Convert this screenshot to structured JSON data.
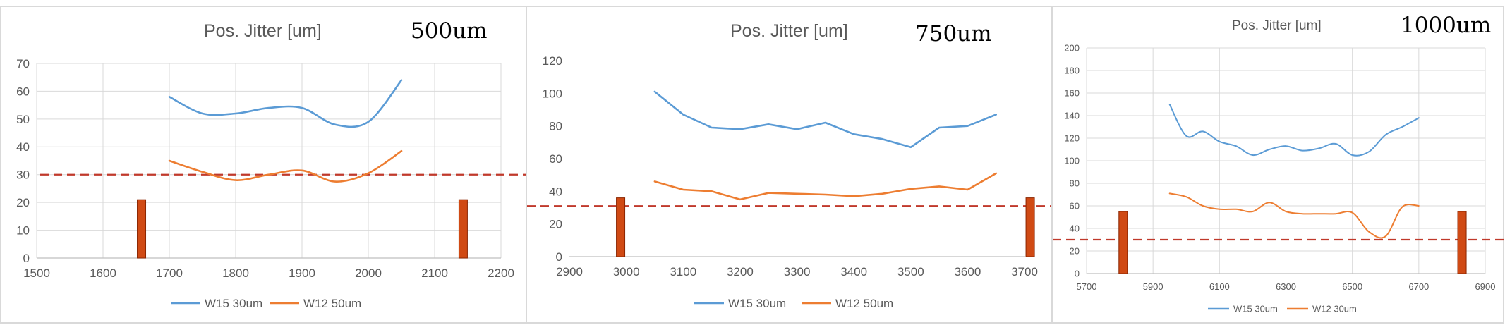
{
  "colors": {
    "series_blue": "#5b9bd5",
    "series_orange": "#ed7d31",
    "threshold": "#c0392b",
    "marker_fill": "#d04a14",
    "marker_stroke": "#8b2500",
    "grid": "#d9d9d9",
    "axis_text": "#595959"
  },
  "chart_data": [
    {
      "type": "line",
      "title": "Pos. Jitter [um]",
      "annotation": "500um",
      "xlim": [
        1500,
        2200
      ],
      "ylim": [
        0,
        70
      ],
      "xticks": [
        1500,
        1600,
        1700,
        1800,
        1900,
        2000,
        2100,
        2200
      ],
      "yticks": [
        0,
        10,
        20,
        30,
        40,
        50,
        60,
        70
      ],
      "grid": true,
      "legend_position": "bottom",
      "series": [
        {
          "name": "W15 30um",
          "color": "#5b9bd5",
          "x": [
            1700,
            1750,
            1800,
            1850,
            1900,
            1950,
            2000,
            2050
          ],
          "y": [
            58,
            52,
            52,
            54,
            54,
            48,
            49,
            64
          ]
        },
        {
          "name": "W12 50um",
          "color": "#ed7d31",
          "x": [
            1700,
            1750,
            1800,
            1850,
            1900,
            1950,
            2000,
            2050
          ],
          "y": [
            35,
            31,
            28,
            30,
            31.5,
            27.5,
            30.5,
            38.5
          ]
        }
      ],
      "threshold": 30,
      "markers": [
        {
          "x": 1658,
          "height": 21
        },
        {
          "x": 2143,
          "height": 21
        }
      ]
    },
    {
      "type": "line",
      "title": "Pos. Jitter [um]",
      "annotation": "750um",
      "xlim": [
        2900,
        3700
      ],
      "ylim": [
        0,
        120
      ],
      "xticks": [
        2900,
        3000,
        3100,
        3200,
        3300,
        3400,
        3500,
        3600,
        3700
      ],
      "yticks": [
        0,
        20,
        40,
        60,
        80,
        100,
        120
      ],
      "grid": false,
      "legend_position": "bottom",
      "series": [
        {
          "name": "W15 30um",
          "color": "#5b9bd5",
          "x": [
            3050,
            3100,
            3150,
            3200,
            3250,
            3300,
            3350,
            3400,
            3450,
            3500,
            3550,
            3600,
            3650
          ],
          "y": [
            101,
            87,
            79,
            78,
            81,
            78,
            82,
            75,
            72,
            67,
            79,
            80,
            87
          ]
        },
        {
          "name": "W12 50um",
          "color": "#ed7d31",
          "x": [
            3050,
            3100,
            3150,
            3200,
            3250,
            3300,
            3350,
            3400,
            3450,
            3500,
            3550,
            3600,
            3650
          ],
          "y": [
            46,
            41,
            40,
            35,
            39,
            38.5,
            38,
            37,
            38.5,
            41.5,
            43,
            41,
            51
          ]
        }
      ],
      "threshold": 31,
      "markers": [
        {
          "x": 2990,
          "height": 36
        },
        {
          "x": 3710,
          "height": 36
        }
      ]
    },
    {
      "type": "line",
      "title": "Pos. Jitter [um]",
      "annotation": "1000um",
      "xlim": [
        5700,
        6900
      ],
      "ylim": [
        0,
        200
      ],
      "xticks": [
        5700,
        5900,
        6100,
        6300,
        6500,
        6700,
        6900
      ],
      "yticks": [
        0,
        20,
        40,
        60,
        80,
        100,
        120,
        140,
        160,
        180,
        200
      ],
      "grid": true,
      "legend_position": "bottom",
      "series": [
        {
          "name": "W15 30um",
          "color": "#5b9bd5",
          "x": [
            5950,
            6000,
            6050,
            6100,
            6150,
            6200,
            6250,
            6300,
            6350,
            6400,
            6450,
            6500,
            6550,
            6600,
            6650,
            6700
          ],
          "y": [
            150,
            122,
            126,
            117,
            113,
            105,
            110,
            113,
            109,
            111,
            115,
            105,
            108,
            123,
            130,
            138
          ]
        },
        {
          "name": "W12 30um",
          "color": "#ed7d31",
          "x": [
            5950,
            6000,
            6050,
            6100,
            6150,
            6200,
            6250,
            6300,
            6350,
            6400,
            6450,
            6500,
            6550,
            6600,
            6650,
            6700
          ],
          "y": [
            71,
            68,
            60,
            57,
            57,
            55,
            63,
            55,
            53,
            53,
            53,
            54,
            37,
            33,
            59,
            60
          ]
        }
      ],
      "threshold": 30,
      "markers": [
        {
          "x": 5810,
          "height": 55
        },
        {
          "x": 6830,
          "height": 55
        }
      ]
    }
  ]
}
